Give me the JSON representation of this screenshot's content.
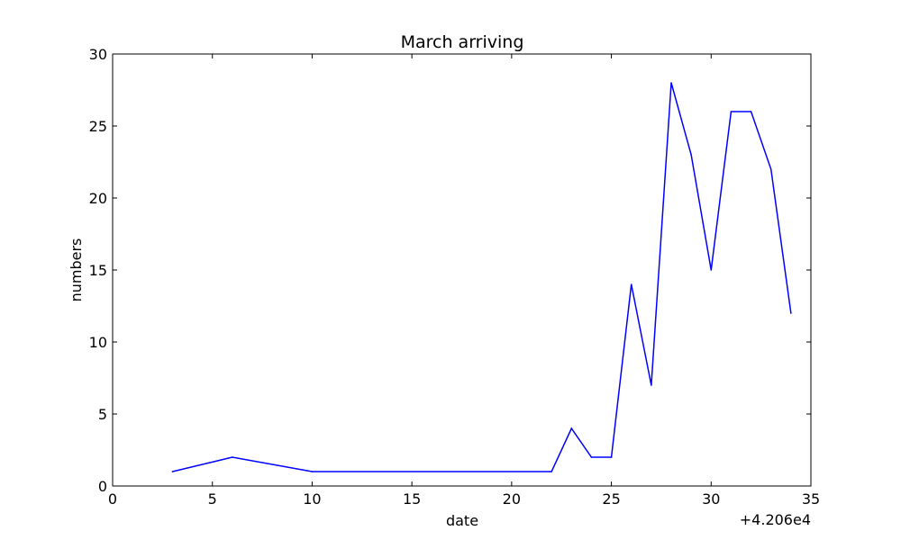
{
  "chart_data": {
    "type": "line",
    "title": "March arriving",
    "xlabel": "date",
    "ylabel": "numbers",
    "x_offset_label": "+4.206e4",
    "xlim": [
      0,
      35
    ],
    "ylim": [
      0,
      30
    ],
    "xticks": [
      0,
      5,
      10,
      15,
      20,
      25,
      30,
      35
    ],
    "yticks": [
      0,
      5,
      10,
      15,
      20,
      25,
      30
    ],
    "grid": false,
    "series": [
      {
        "color": "#0000ff",
        "x": [
          3,
          6,
          10,
          22,
          23,
          24,
          25,
          26,
          27,
          28,
          29,
          30,
          31,
          32,
          33,
          34
        ],
        "y": [
          1,
          2,
          1,
          1,
          4,
          2,
          2,
          14,
          7,
          28,
          23,
          15,
          26,
          26,
          22,
          12
        ]
      }
    ]
  }
}
